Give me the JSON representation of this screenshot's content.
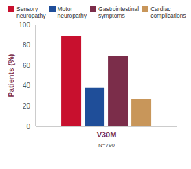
{
  "chart_data": {
    "type": "bar",
    "categories": [
      "V30M"
    ],
    "xlabel": "N=790",
    "ylabel": "Patients (%)",
    "series": [
      {
        "name": "Sensory neuropathy",
        "color": "#c8102e",
        "values": [
          89
        ]
      },
      {
        "name": "Motor neuropathy",
        "color": "#1f4e99",
        "values": [
          38
        ]
      },
      {
        "name": "Gastrointestinal symptoms",
        "color": "#7b2d4a",
        "values": [
          69
        ]
      },
      {
        "name": "Cardiac complications",
        "color": "#c8965a",
        "values": [
          27
        ]
      }
    ],
    "ylim": [
      0,
      100
    ],
    "yticks": [
      0,
      20,
      40,
      60,
      80,
      100
    ],
    "grid": false,
    "legend": "top"
  }
}
